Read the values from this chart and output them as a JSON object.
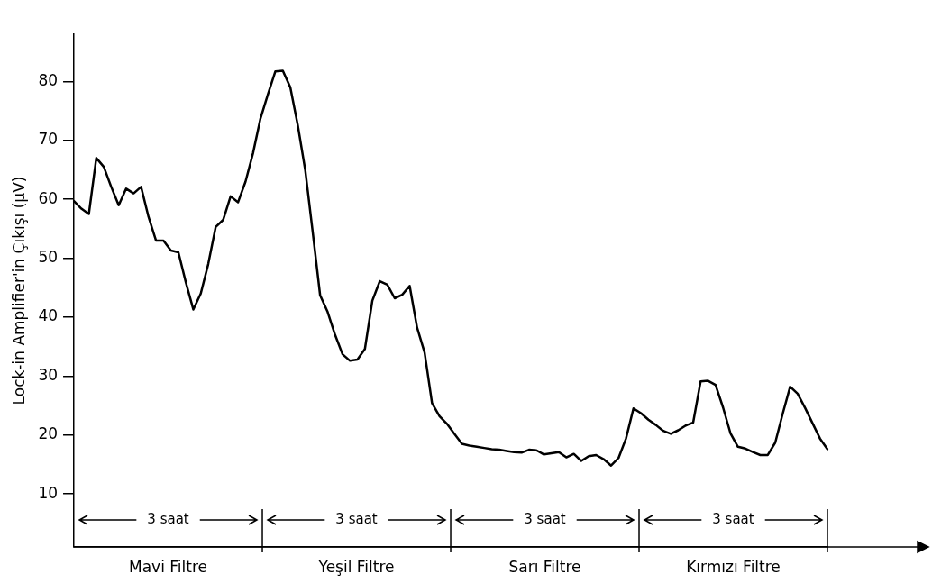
{
  "chart_data": {
    "type": "line",
    "ylabel": "Lock-in Amplifier'in Çıkışı (μV)",
    "categories": [
      null,
      null,
      null,
      null,
      null,
      null,
      null,
      null,
      null,
      null,
      null,
      null,
      null,
      null,
      null,
      null,
      null,
      null,
      null,
      null,
      null,
      null,
      null,
      null,
      null,
      null,
      null,
      null,
      null,
      null,
      null,
      null,
      null,
      null,
      null,
      null,
      null,
      null,
      null,
      null,
      null,
      null,
      null,
      null,
      null,
      null,
      null,
      null,
      null,
      null,
      null,
      null,
      null,
      null,
      null,
      null,
      null,
      null,
      null,
      null,
      null,
      null,
      null,
      null,
      null,
      null,
      null,
      null,
      null,
      null,
      null,
      null,
      null,
      null,
      null,
      null,
      null,
      null,
      null,
      null,
      null,
      null,
      null,
      null,
      null,
      null,
      null,
      null,
      null,
      null,
      null,
      null,
      null,
      null,
      null,
      null,
      null,
      null,
      null,
      null,
      null,
      null
    ],
    "series": [
      {
        "color": "#000000",
        "values": [
          59.7,
          58.4,
          57.5,
          67,
          65.5,
          62.1,
          59,
          61.8,
          61,
          62.1,
          57,
          53,
          53,
          51.3,
          51,
          45.9,
          41.3,
          44,
          49,
          55.3,
          56.5,
          60.5,
          59.5,
          63,
          67.8,
          73.7,
          77.8,
          81.7,
          81.8,
          79,
          72.6,
          65,
          54.5,
          43.7,
          40.9,
          37,
          33.7,
          32.6,
          32.8,
          34.6,
          42.8,
          46.1,
          45.5,
          43.2,
          43.8,
          45.3,
          38.2,
          34,
          25.4,
          23.2,
          21.9,
          20.2,
          18.5,
          18.2,
          18,
          17.8,
          17.6,
          17.5,
          17.3,
          17.1,
          17,
          17.5,
          17.4,
          16.7,
          16.9,
          17.1,
          16.2,
          16.8,
          15.6,
          16.4,
          16.6,
          15.9,
          14.8,
          16.1,
          19.4,
          24.5,
          23.7,
          22.6,
          21.7,
          20.7,
          20.2,
          20.8,
          21.6,
          22.1,
          29.1,
          29.2,
          28.5,
          24.7,
          20.3,
          18,
          17.7,
          17.1,
          16.6,
          16.6,
          18.7,
          23.6,
          28.2,
          27,
          24.6,
          22,
          19.4,
          17.6
        ]
      }
    ],
    "ylim": [
      1,
      88
    ],
    "yticks": [
      10,
      20,
      30,
      40,
      50,
      60,
      70,
      80
    ],
    "annotations": [
      "3 saat",
      "Mavi Filtre",
      "3 saat",
      "Yeşil Filtre",
      "3 saat",
      "Sarı Filtre",
      "3 saat",
      "Kırmızı Filtre"
    ]
  }
}
